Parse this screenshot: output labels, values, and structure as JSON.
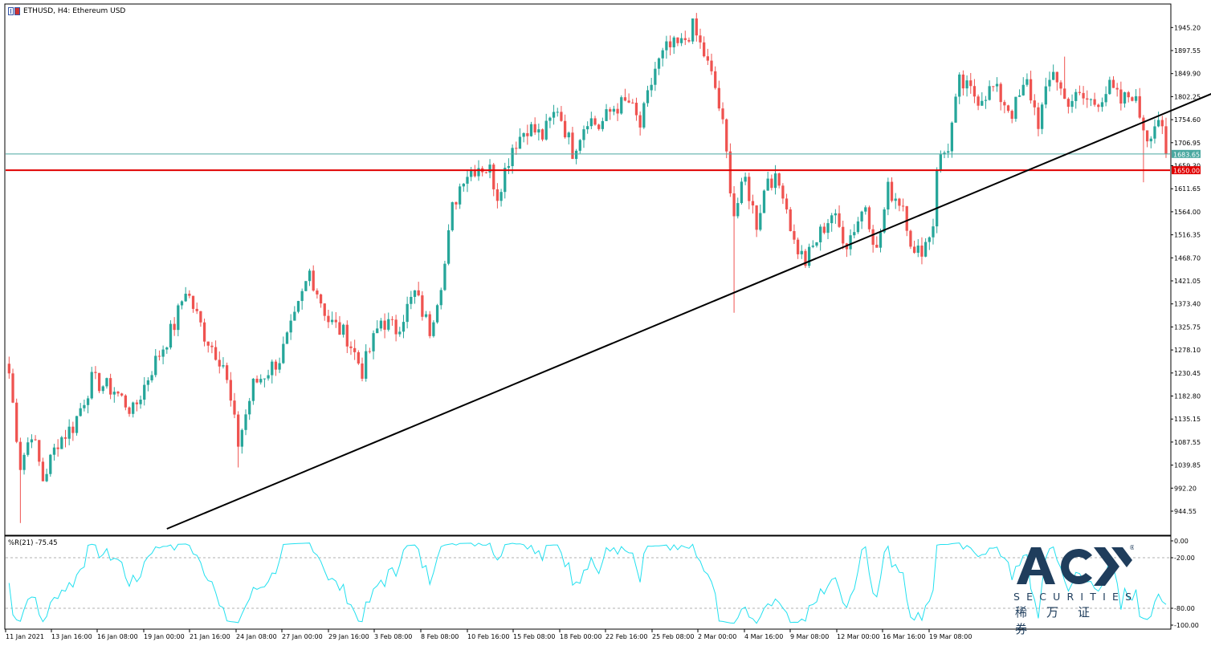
{
  "header": {
    "symbol_title": "ETHUSD, H4:  Ethereum USD"
  },
  "indicator": {
    "label": "%R(21) -75.45",
    "levels": [
      "0.00",
      "-20.00",
      "-80.00",
      "-100.00"
    ]
  },
  "price_tags": {
    "current": "1683.65",
    "support": "1650.00"
  },
  "colors": {
    "bull": "#26a69a",
    "bear": "#ef5350",
    "current_line": "#4aa8a0",
    "support_line": "#e00000",
    "trendline": "#000000",
    "indicator_line": "#22e0ef",
    "logo": "#1f3d5c"
  },
  "logo": {
    "brand": "ACY",
    "registered": "®",
    "tagline": "SECURITIES",
    "chinese": "稀万证券"
  },
  "chart_data": {
    "type": "candlestick",
    "title": "ETHUSD, H4:  Ethereum USD",
    "y_ticks": [
      "1945.20",
      "1897.55",
      "1849.90",
      "1802.25",
      "1754.60",
      "1706.95",
      "1659.30",
      "1611.65",
      "1564.00",
      "1516.35",
      "1468.70",
      "1421.05",
      "1373.40",
      "1325.75",
      "1278.10",
      "1230.45",
      "1182.80",
      "1135.15",
      "1087.55",
      "1039.85",
      "992.20",
      "944.55"
    ],
    "x_ticks": [
      "11 Jan 2021",
      "13 Jan 16:00",
      "16 Jan 08:00",
      "19 Jan 00:00",
      "21 Jan 16:00",
      "24 Jan 08:00",
      "27 Jan 00:00",
      "29 Jan 16:00",
      "3 Feb 08:00",
      "8 Feb 08:00",
      "10 Feb 16:00",
      "15 Feb 08:00",
      "18 Feb 00:00",
      "22 Feb 16:00",
      "25 Feb 08:00",
      "2 Mar 00:00",
      "4 Mar 16:00",
      "9 Mar 08:00",
      "12 Mar 00:00",
      "16 Mar 16:00",
      "19 Mar 08:00"
    ],
    "ylim": [
      900,
      1975
    ],
    "horizontal_lines": [
      {
        "price": 1683.65,
        "style": "current price"
      },
      {
        "price": 1650.0,
        "style": "support"
      }
    ],
    "trendline": {
      "from_bar": 42,
      "from_price": 908,
      "to_bar": 320,
      "to_price": 1800
    },
    "close_path": [
      [
        0,
        1230
      ],
      [
        3,
        1040
      ],
      [
        6,
        1110
      ],
      [
        9,
        1010
      ],
      [
        13,
        1090
      ],
      [
        17,
        1120
      ],
      [
        22,
        1215
      ],
      [
        28,
        1195
      ],
      [
        33,
        1150
      ],
      [
        38,
        1240
      ],
      [
        44,
        1330
      ],
      [
        47,
        1405
      ],
      [
        52,
        1310
      ],
      [
        57,
        1250
      ],
      [
        61,
        1085
      ],
      [
        65,
        1205
      ],
      [
        72,
        1260
      ],
      [
        76,
        1340
      ],
      [
        80,
        1440
      ],
      [
        85,
        1340
      ],
      [
        90,
        1305
      ],
      [
        94,
        1235
      ],
      [
        99,
        1340
      ],
      [
        103,
        1320
      ],
      [
        108,
        1395
      ],
      [
        112,
        1320
      ],
      [
        116,
        1455
      ],
      [
        118,
        1570
      ],
      [
        121,
        1640
      ],
      [
        125,
        1660
      ],
      [
        128,
        1650
      ],
      [
        130,
        1600
      ],
      [
        134,
        1700
      ],
      [
        138,
        1740
      ],
      [
        142,
        1720
      ],
      [
        146,
        1780
      ],
      [
        150,
        1690
      ],
      [
        154,
        1760
      ],
      [
        157,
        1740
      ],
      [
        161,
        1780
      ],
      [
        165,
        1790
      ],
      [
        168,
        1740
      ],
      [
        172,
        1860
      ],
      [
        175,
        1900
      ],
      [
        179,
        1910
      ],
      [
        182,
        1945
      ],
      [
        185,
        1890
      ],
      [
        188,
        1820
      ],
      [
        190,
        1740
      ],
      [
        193,
        1560
      ],
      [
        196,
        1630
      ],
      [
        199,
        1540
      ],
      [
        202,
        1640
      ],
      [
        206,
        1610
      ],
      [
        209,
        1500
      ],
      [
        212,
        1460
      ],
      [
        216,
        1520
      ],
      [
        219,
        1560
      ],
      [
        223,
        1500
      ],
      [
        228,
        1580
      ],
      [
        231,
        1480
      ],
      [
        234,
        1610
      ],
      [
        238,
        1580
      ],
      [
        241,
        1470
      ],
      [
        244,
        1500
      ],
      [
        246,
        1540
      ],
      [
        247,
        1660
      ],
      [
        250,
        1700
      ],
      [
        253,
        1830
      ],
      [
        258,
        1800
      ],
      [
        262,
        1820
      ],
      [
        267,
        1770
      ],
      [
        271,
        1830
      ],
      [
        274,
        1750
      ],
      [
        278,
        1860
      ],
      [
        281,
        1795
      ],
      [
        285,
        1800
      ],
      [
        289,
        1790
      ],
      [
        293,
        1820
      ],
      [
        296,
        1790
      ],
      [
        299,
        1810
      ],
      [
        303,
        1720
      ],
      [
        306,
        1760
      ],
      [
        308,
        1683.65
      ]
    ]
  }
}
